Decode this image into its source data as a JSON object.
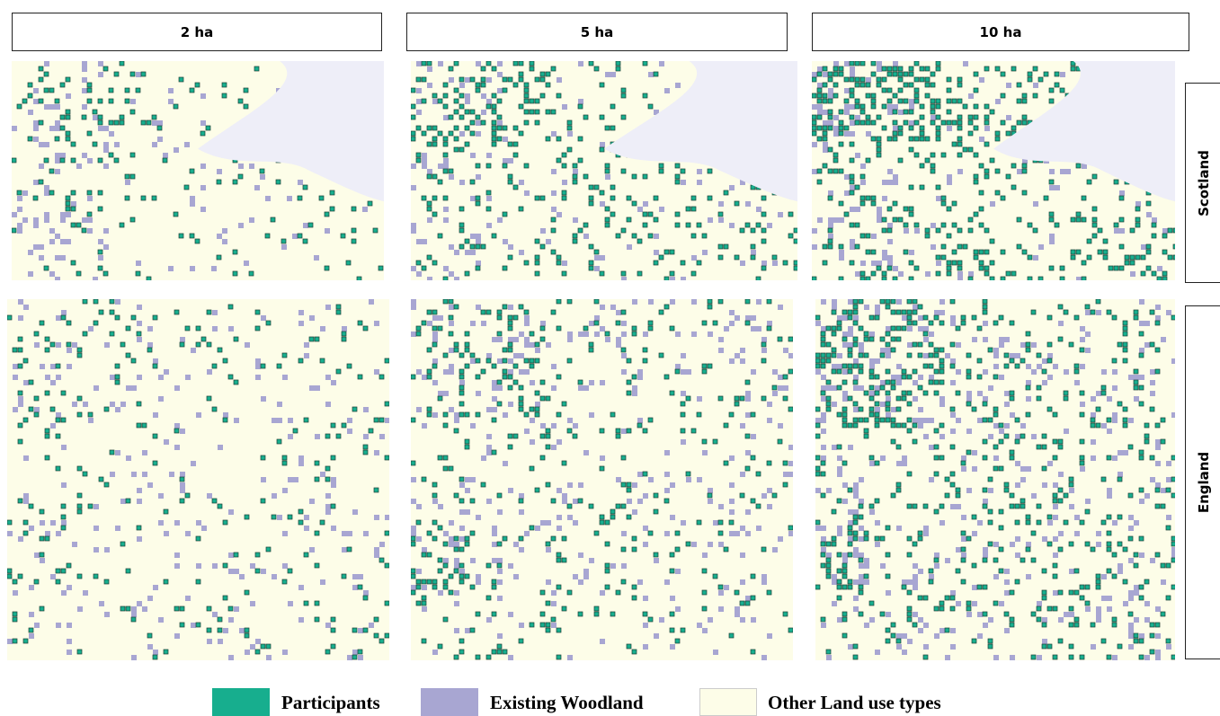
{
  "columns": [
    "2 ha",
    "5 ha",
    "10 ha"
  ],
  "rows": [
    "Scotland",
    "England"
  ],
  "legend": [
    {
      "label": "Participants",
      "color": "#17ae8e"
    },
    {
      "label": "Existing Woodland",
      "color": "#a8a6d2"
    },
    {
      "label": "Other Land use types",
      "color": "#fdfde8"
    }
  ]
}
